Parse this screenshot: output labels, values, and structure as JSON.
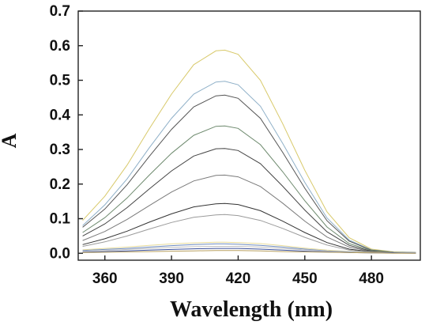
{
  "chart_data": {
    "type": "line",
    "title": "",
    "xlabel": "Wavelength (nm)",
    "ylabel": "A",
    "xlim": [
      348,
      502
    ],
    "ylim": [
      -0.02,
      0.7
    ],
    "xticks": [
      360,
      390,
      420,
      450,
      480
    ],
    "yticks": [
      0.0,
      0.1,
      0.2,
      0.3,
      0.4,
      0.5,
      0.6,
      0.7
    ],
    "ytick_labels": [
      "0.0",
      "0.1",
      "0.2",
      "0.3",
      "0.4",
      "0.5",
      "0.6",
      "0.7"
    ],
    "grid": false,
    "legend": "none",
    "x": [
      350,
      360,
      370,
      380,
      390,
      400,
      410,
      414,
      420,
      430,
      440,
      450,
      460,
      470,
      480,
      490,
      500
    ],
    "series": [
      {
        "color": "#d8c96a",
        "values": [
          0.095,
          0.165,
          0.255,
          0.36,
          0.46,
          0.545,
          0.585,
          0.587,
          0.575,
          0.5,
          0.375,
          0.24,
          0.12,
          0.045,
          0.012,
          0.004,
          0.002
        ]
      },
      {
        "color": "#8fb0c8",
        "values": [
          0.08,
          0.14,
          0.215,
          0.305,
          0.39,
          0.46,
          0.495,
          0.497,
          0.487,
          0.425,
          0.318,
          0.205,
          0.102,
          0.038,
          0.01,
          0.003,
          0.002
        ]
      },
      {
        "color": "#555555",
        "values": [
          0.075,
          0.128,
          0.198,
          0.28,
          0.358,
          0.423,
          0.455,
          0.457,
          0.448,
          0.39,
          0.292,
          0.188,
          0.094,
          0.035,
          0.009,
          0.003,
          0.002
        ]
      },
      {
        "color": "#6e8a6e",
        "values": [
          0.06,
          0.103,
          0.16,
          0.226,
          0.289,
          0.341,
          0.367,
          0.368,
          0.361,
          0.314,
          0.236,
          0.152,
          0.076,
          0.028,
          0.008,
          0.003,
          0.002
        ]
      },
      {
        "color": "#444444",
        "values": [
          0.05,
          0.085,
          0.132,
          0.186,
          0.238,
          0.281,
          0.302,
          0.303,
          0.297,
          0.259,
          0.194,
          0.125,
          0.062,
          0.023,
          0.006,
          0.002,
          0.001
        ]
      },
      {
        "color": "#7a7a7a",
        "values": [
          0.037,
          0.063,
          0.098,
          0.138,
          0.177,
          0.209,
          0.225,
          0.226,
          0.221,
          0.193,
          0.145,
          0.093,
          0.047,
          0.018,
          0.005,
          0.002,
          0.001
        ]
      },
      {
        "color": "#333333",
        "values": [
          0.025,
          0.042,
          0.064,
          0.09,
          0.114,
          0.134,
          0.143,
          0.144,
          0.141,
          0.123,
          0.093,
          0.06,
          0.031,
          0.012,
          0.004,
          0.002,
          0.001
        ]
      },
      {
        "color": "#9a9a9a",
        "values": [
          0.02,
          0.033,
          0.05,
          0.07,
          0.089,
          0.104,
          0.111,
          0.112,
          0.109,
          0.095,
          0.072,
          0.046,
          0.024,
          0.009,
          0.003,
          0.001,
          0.001
        ]
      },
      {
        "color": "#e8dc9a",
        "values": [
          0.01,
          0.014,
          0.018,
          0.023,
          0.027,
          0.03,
          0.032,
          0.032,
          0.031,
          0.028,
          0.022,
          0.015,
          0.009,
          0.005,
          0.003,
          0.002,
          0.001
        ]
      },
      {
        "color": "#6e8cc0",
        "values": [
          0.008,
          0.011,
          0.014,
          0.018,
          0.022,
          0.025,
          0.027,
          0.027,
          0.026,
          0.023,
          0.018,
          0.012,
          0.007,
          0.004,
          0.002,
          0.001,
          0.001
        ]
      },
      {
        "color": "#c0c0c0",
        "values": [
          0.006,
          0.008,
          0.011,
          0.014,
          0.017,
          0.019,
          0.02,
          0.02,
          0.02,
          0.018,
          0.014,
          0.01,
          0.006,
          0.003,
          0.002,
          0.001,
          0.001
        ]
      },
      {
        "color": "#3a4f9a",
        "values": [
          0.003,
          0.005,
          0.007,
          0.009,
          0.011,
          0.013,
          0.014,
          0.014,
          0.014,
          0.012,
          0.009,
          0.006,
          0.004,
          0.002,
          0.001,
          0.001,
          0.0
        ]
      },
      {
        "color": "#b8a060",
        "values": [
          0.002,
          0.003,
          0.004,
          0.005,
          0.006,
          0.007,
          0.008,
          0.008,
          0.008,
          0.007,
          0.005,
          0.004,
          0.003,
          0.002,
          0.001,
          0.0,
          0.0
        ]
      }
    ]
  }
}
